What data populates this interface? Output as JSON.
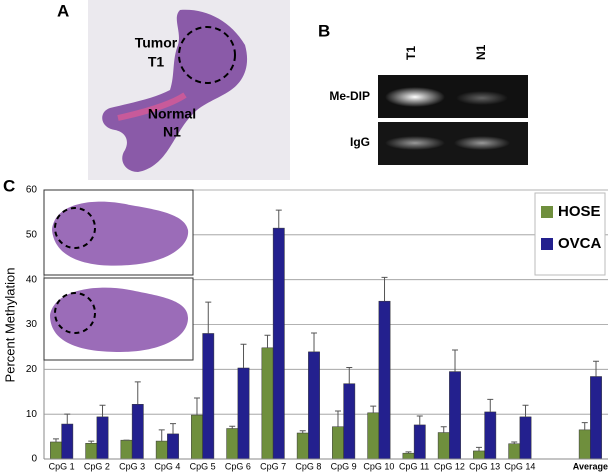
{
  "panels": {
    "a": {
      "letter": "A",
      "tumor": "Tumor",
      "tumor_id": "T1",
      "normal": "Normal",
      "normal_id": "N1"
    },
    "b": {
      "letter": "B",
      "columns": [
        "T1",
        "N1"
      ],
      "rows": [
        "Me-DIP",
        "IgG"
      ]
    },
    "c": {
      "letter": "C"
    }
  },
  "chart_data": {
    "type": "bar",
    "y_label": "Percent Methylation",
    "categories": [
      "CpG 1",
      "CpG 2",
      "CpG 3",
      "CpG 4",
      "CpG 5",
      "CpG 6",
      "CpG 7",
      "CpG 8",
      "CpG 9",
      "CpG 10",
      "CpG 11",
      "CpG 12",
      "CpG 13",
      "CpG 14",
      null,
      "Average"
    ],
    "series": [
      {
        "name": "HOSE",
        "color": "#6f8f3d",
        "values": [
          3.8,
          3.5,
          4.2,
          4.0,
          9.8,
          6.8,
          24.8,
          5.8,
          7.2,
          10.3,
          1.3,
          5.9,
          1.8,
          3.4,
          null,
          6.5
        ],
        "errors": [
          0.7,
          0.5,
          0,
          2.5,
          3.8,
          0.5,
          2.8,
          0.5,
          3.5,
          1.5,
          0.3,
          1.3,
          0.8,
          0.4,
          null,
          1.6
        ]
      },
      {
        "name": "OVCA",
        "color": "#23208e",
        "values": [
          7.8,
          9.4,
          12.2,
          5.6,
          28,
          20.3,
          51.5,
          23.9,
          16.8,
          35.2,
          7.6,
          19.5,
          10.5,
          9.4,
          null,
          18.4
        ],
        "errors": [
          2.2,
          2.6,
          5,
          2.3,
          7,
          5.3,
          4,
          4.2,
          3.6,
          5.3,
          2,
          4.8,
          2.8,
          2.6,
          null,
          3.4
        ]
      }
    ],
    "ylim": [
      0,
      60
    ],
    "yticks": [
      0,
      10,
      20,
      30,
      40,
      50,
      60
    ],
    "grid": true,
    "legend": "top-right"
  }
}
